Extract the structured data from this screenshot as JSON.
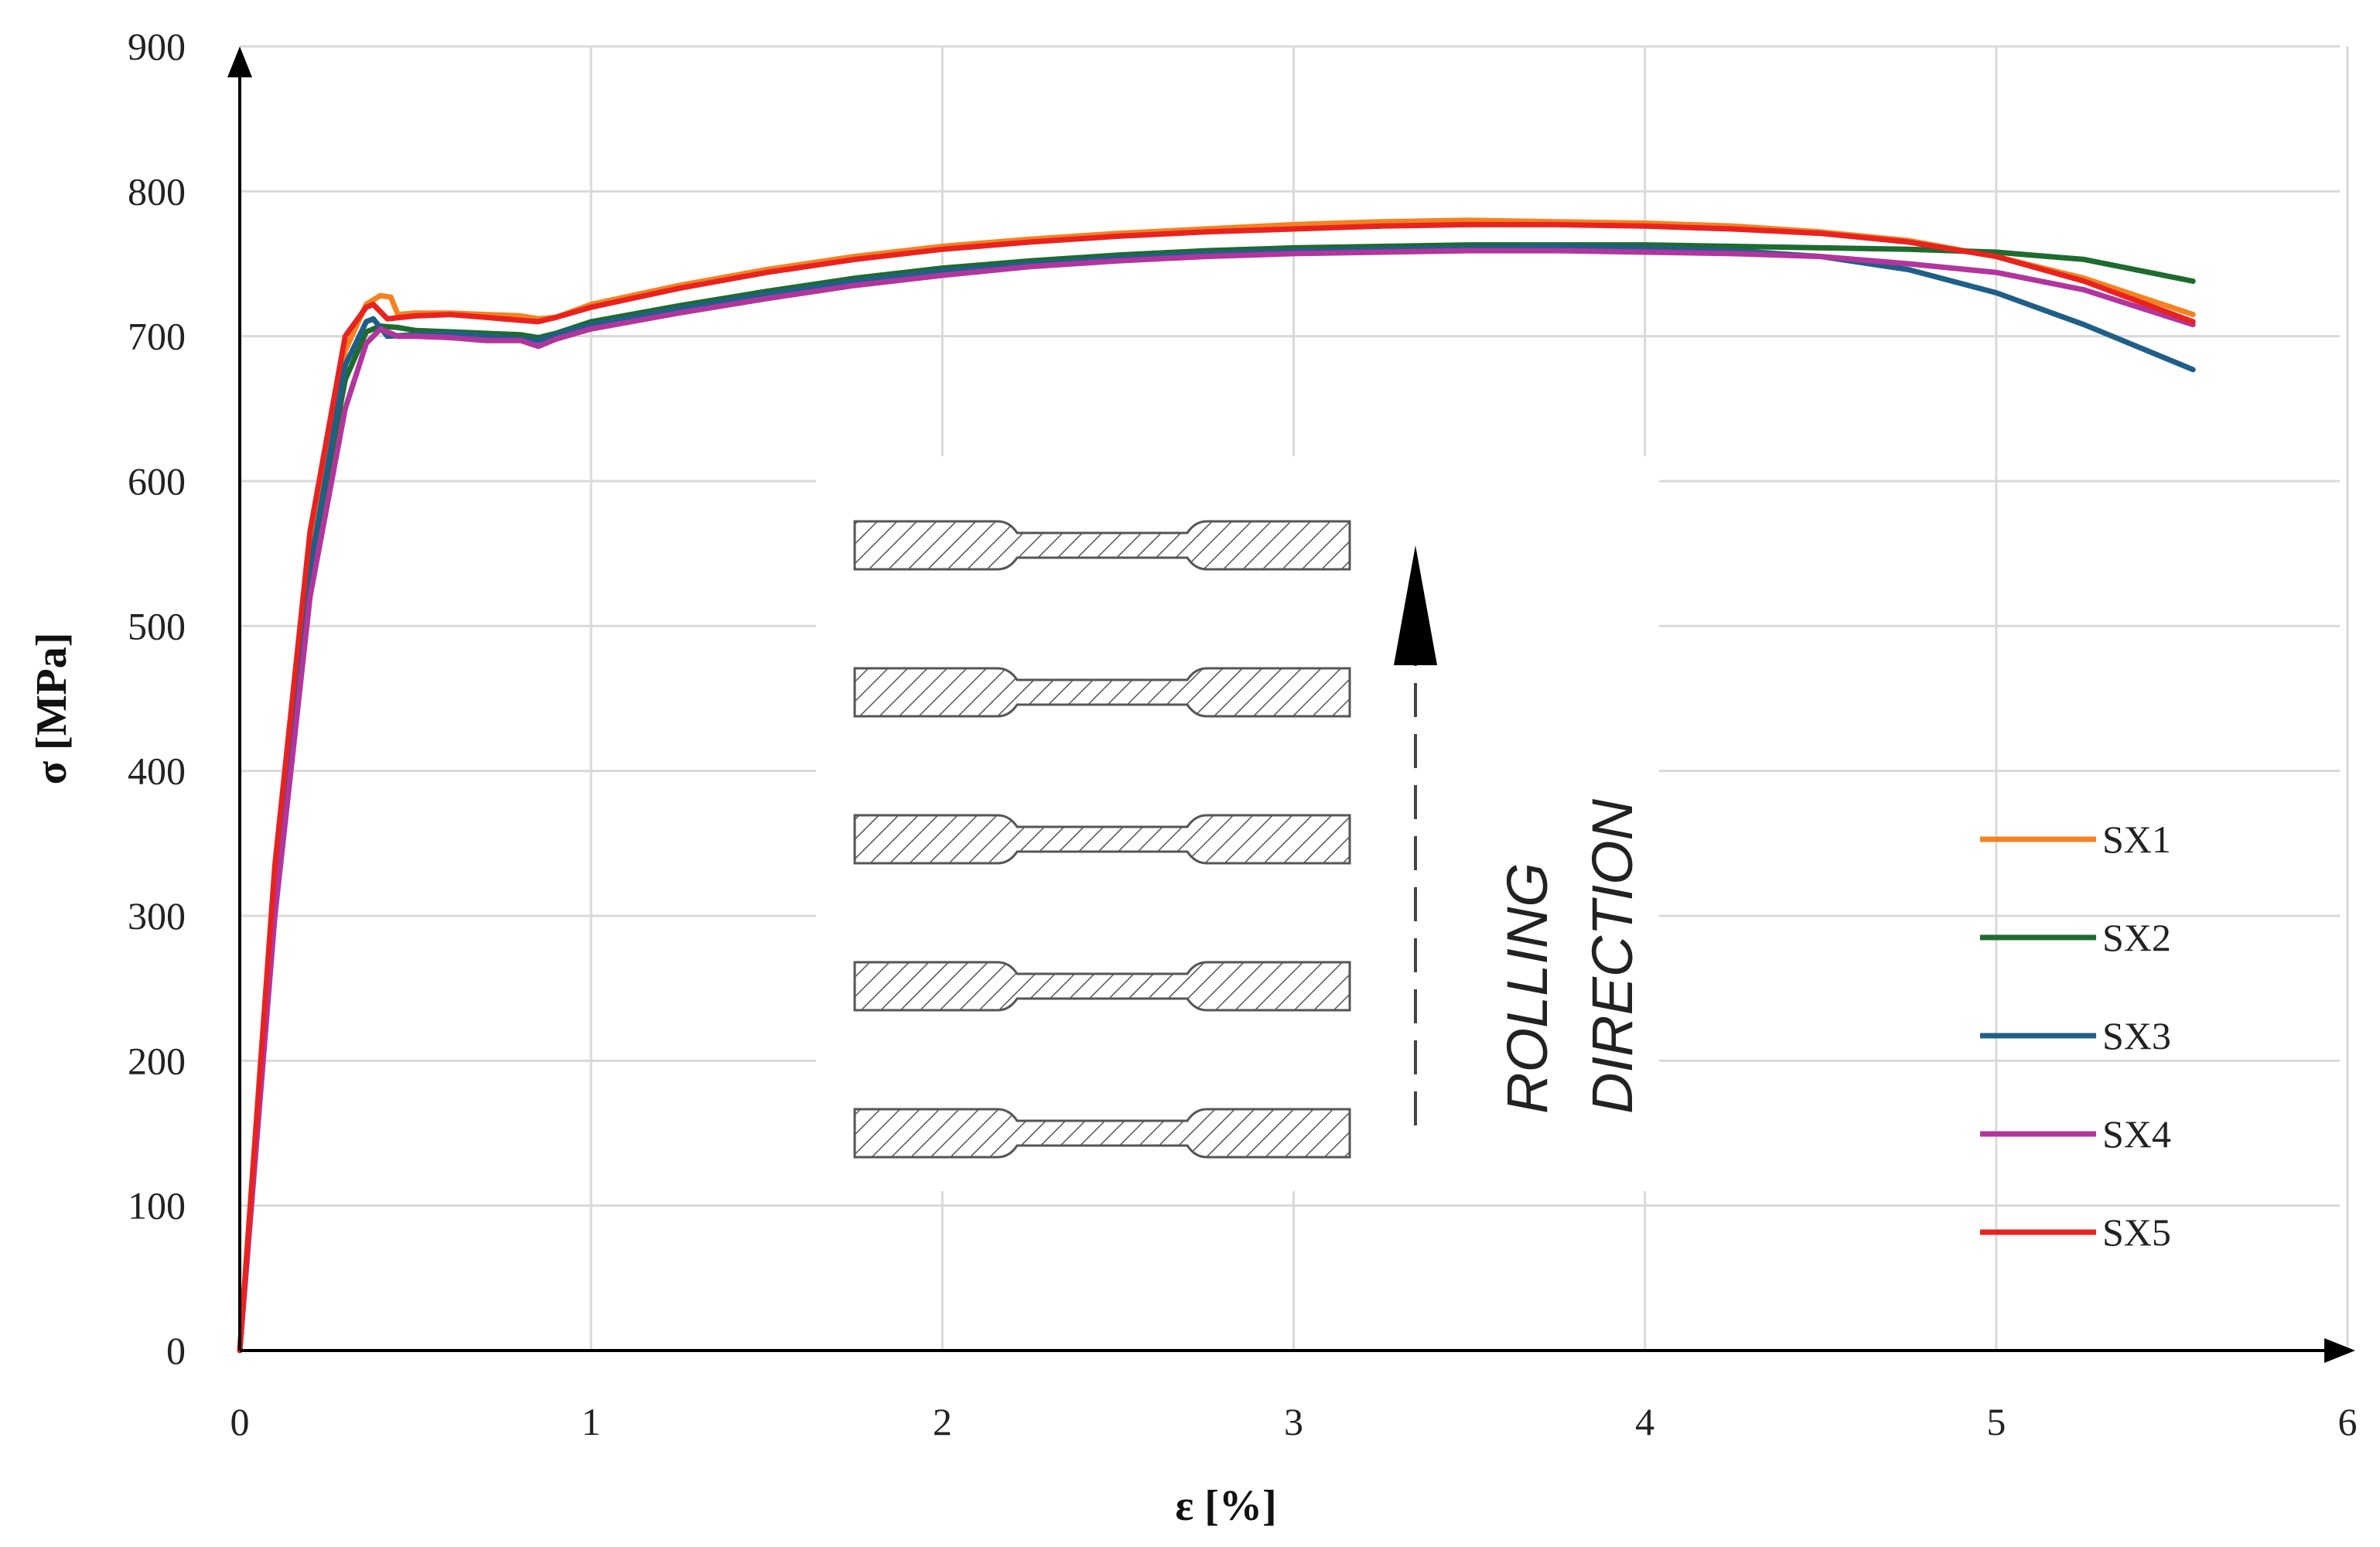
{
  "chart_data": {
    "type": "line",
    "title": "",
    "xlabel": "ε [%]",
    "ylabel": "σ [MPa]",
    "xlim": [
      0,
      6
    ],
    "ylim": [
      0,
      900
    ],
    "x_ticks": [
      "0",
      "1",
      "2",
      "3",
      "4",
      "5",
      "6"
    ],
    "y_ticks": [
      "0",
      "100",
      "200",
      "300",
      "400",
      "500",
      "600",
      "700",
      "800",
      "900"
    ],
    "grid": true,
    "legend_position": "right",
    "series": [
      {
        "name": "SX1",
        "color": "#F58220",
        "x": [
          0,
          0.1,
          0.2,
          0.3,
          0.36,
          0.4,
          0.43,
          0.45,
          0.5,
          0.6,
          0.7,
          0.8,
          0.85,
          0.9,
          1.0,
          1.25,
          1.5,
          1.75,
          2.0,
          2.25,
          2.5,
          2.75,
          3.0,
          3.25,
          3.5,
          3.75,
          4.0,
          4.25,
          4.5,
          4.75,
          5.0,
          5.25,
          5.56
        ],
        "y": [
          0,
          330,
          560,
          690,
          722,
          728,
          727,
          715,
          716,
          716,
          715,
          714,
          712,
          713,
          722,
          735,
          746,
          755,
          762,
          767,
          771,
          774,
          777,
          779,
          780,
          779,
          778,
          776,
          772,
          766,
          755,
          740,
          715
        ]
      },
      {
        "name": "SX2",
        "color": "#1E6B2E",
        "x": [
          0,
          0.1,
          0.2,
          0.3,
          0.36,
          0.4,
          0.45,
          0.5,
          0.6,
          0.7,
          0.8,
          0.85,
          0.9,
          1.0,
          1.25,
          1.5,
          1.75,
          2.0,
          2.25,
          2.5,
          2.75,
          3.0,
          3.25,
          3.5,
          3.75,
          4.0,
          4.25,
          4.5,
          4.75,
          5.0,
          5.25,
          5.56
        ],
        "y": [
          0,
          320,
          540,
          670,
          703,
          707,
          706,
          704,
          703,
          702,
          701,
          699,
          702,
          710,
          721,
          731,
          740,
          747,
          752,
          756,
          759,
          761,
          762,
          763,
          763,
          763,
          762,
          761,
          760,
          758,
          753,
          738
        ]
      },
      {
        "name": "SX3",
        "color": "#1F5F87",
        "x": [
          0,
          0.1,
          0.2,
          0.3,
          0.36,
          0.38,
          0.42,
          0.5,
          0.6,
          0.7,
          0.8,
          0.85,
          0.9,
          1.0,
          1.25,
          1.5,
          1.75,
          2.0,
          2.25,
          2.5,
          2.75,
          3.0,
          3.25,
          3.5,
          3.75,
          4.0,
          4.25,
          4.5,
          4.75,
          5.0,
          5.25,
          5.56
        ],
        "y": [
          0,
          320,
          540,
          680,
          710,
          712,
          700,
          701,
          702,
          700,
          698,
          697,
          701,
          708,
          719,
          729,
          738,
          745,
          750,
          754,
          757,
          759,
          760,
          761,
          762,
          761,
          759,
          755,
          746,
          730,
          708,
          677
        ]
      },
      {
        "name": "SX4",
        "color": "#B2359E",
        "x": [
          0,
          0.1,
          0.2,
          0.3,
          0.36,
          0.4,
          0.45,
          0.5,
          0.6,
          0.7,
          0.8,
          0.85,
          0.9,
          1.0,
          1.25,
          1.5,
          1.75,
          2.0,
          2.25,
          2.5,
          2.75,
          3.0,
          3.25,
          3.5,
          3.75,
          4.0,
          4.25,
          4.5,
          4.75,
          5.0,
          5.25,
          5.56
        ],
        "y": [
          0,
          300,
          520,
          650,
          695,
          705,
          700,
          700,
          699,
          697,
          697,
          693,
          698,
          705,
          716,
          726,
          735,
          742,
          748,
          752,
          755,
          757,
          758,
          759,
          759,
          758,
          757,
          755,
          750,
          744,
          732,
          708
        ]
      },
      {
        "name": "SX5",
        "color": "#E8231F",
        "x": [
          0,
          0.1,
          0.2,
          0.3,
          0.36,
          0.38,
          0.42,
          0.5,
          0.6,
          0.7,
          0.8,
          0.85,
          0.9,
          1.0,
          1.25,
          1.5,
          1.75,
          2.0,
          2.25,
          2.5,
          2.75,
          3.0,
          3.25,
          3.5,
          3.75,
          4.0,
          4.25,
          4.5,
          4.75,
          5.0,
          5.25,
          5.56
        ],
        "y": [
          0,
          335,
          565,
          700,
          720,
          722,
          712,
          714,
          715,
          713,
          711,
          710,
          713,
          720,
          733,
          744,
          753,
          760,
          765,
          769,
          772,
          774,
          776,
          777,
          777,
          776,
          774,
          771,
          765,
          755,
          738,
          710
        ]
      }
    ]
  },
  "inset": {
    "annotation_line1": "ROLLING",
    "annotation_line2": "DIRECTION",
    "specimen_count": 5,
    "hatch_color": "#555555"
  }
}
